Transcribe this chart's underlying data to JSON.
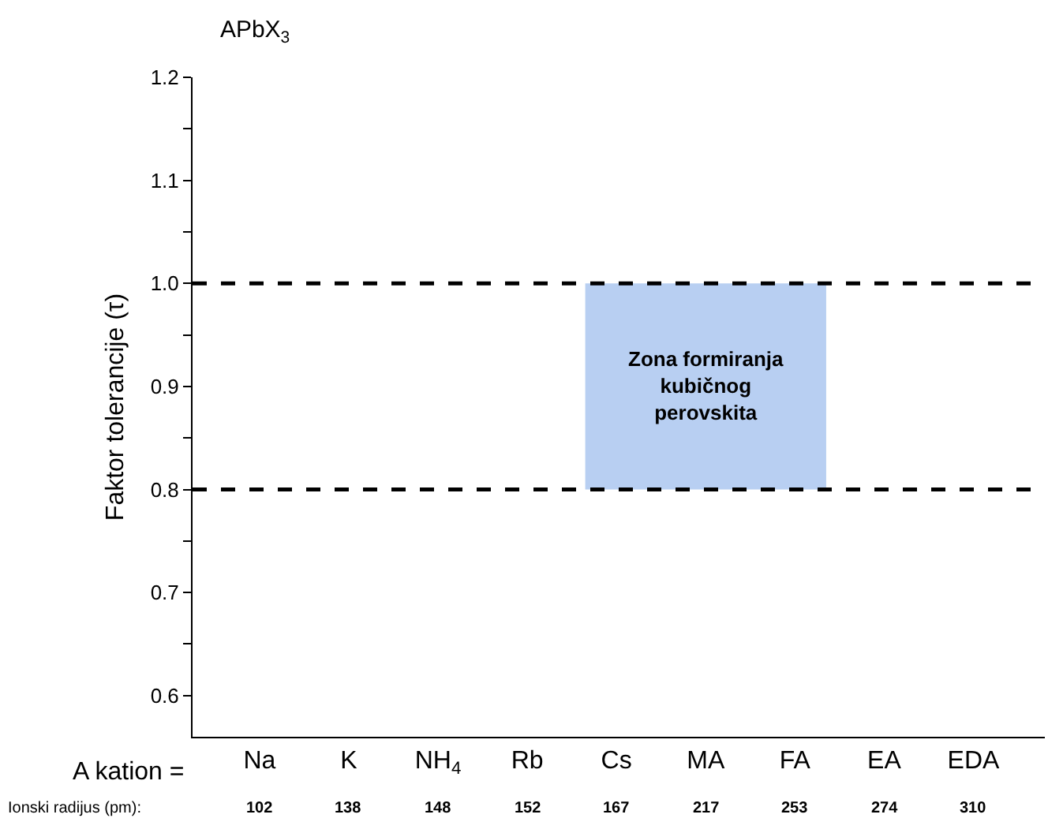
{
  "chart_data": {
    "type": "line",
    "title": "APbX$_{3}$",
    "ylabel": "Faktor tolerancije (τ)",
    "xlabel": "A kation =",
    "categories": [
      "Na",
      "K",
      "NH$_{4}$",
      "Rb",
      "Cs",
      "MA",
      "FA",
      "EA",
      "EDA"
    ],
    "ylim": [
      0.56,
      1.2
    ],
    "yticks": [
      0.6,
      {
        "value": 0.65,
        "label": null
      },
      0.7,
      {
        "value": 0.75,
        "label": null
      },
      0.8,
      {
        "value": 0.85,
        "label": null
      },
      0.9,
      {
        "value": 0.95,
        "label": null
      },
      {
        "value": 1.0,
        "label": "1.0"
      },
      {
        "value": 1.05,
        "label": null
      },
      1.1,
      {
        "value": 1.15,
        "label": null
      },
      1.2
    ],
    "ref_lines": [
      {
        "axis": "y",
        "value": 1.0,
        "label": null,
        "color": "#000000",
        "line_style": "dashed"
      },
      {
        "axis": "y",
        "value": 0.8,
        "label": null,
        "color": "#000000",
        "line_style": "dashed"
      }
    ],
    "bands": [
      {
        "axis": "y",
        "from": 0.8,
        "to": 1.0,
        "label": "Zona formiranja\nkubičnog\nperovskita",
        "color": "#b8cff2"
      }
    ],
    "annotations": [
      "Ionski radijus (pm):",
      "102",
      "138",
      "148",
      "152",
      "167",
      "217",
      "253",
      "274",
      "310"
    ],
    "grid": false
  }
}
